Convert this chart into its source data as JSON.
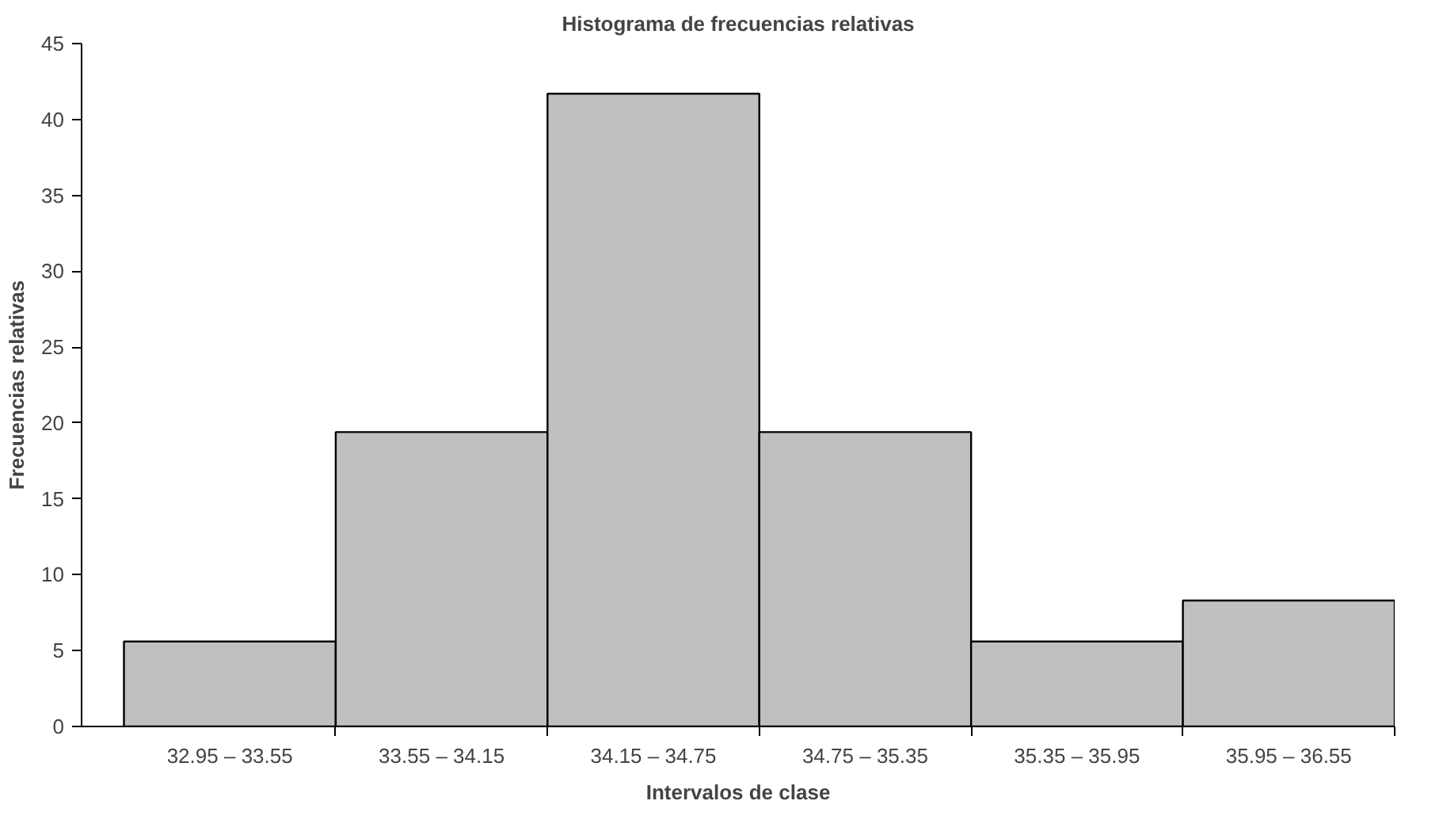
{
  "chart_data": {
    "type": "bar",
    "title": "Histograma de frecuencias relativas",
    "xlabel": "Intervalos de clase",
    "ylabel": "Frecuencias relativas",
    "categories": [
      "32.95 – 33.55",
      "33.55 – 34.15",
      "34.15 – 34.75",
      "34.75 – 35.35",
      "35.35 – 35.95",
      "35.95 – 36.55"
    ],
    "values": [
      5.6,
      19.4,
      41.7,
      19.4,
      5.6,
      8.3
    ],
    "color": "#c0c0c0",
    "ylim": [
      0,
      45
    ],
    "yticks": [
      0,
      5,
      10,
      15,
      20,
      25,
      30,
      35,
      40,
      45
    ],
    "grid": false
  }
}
